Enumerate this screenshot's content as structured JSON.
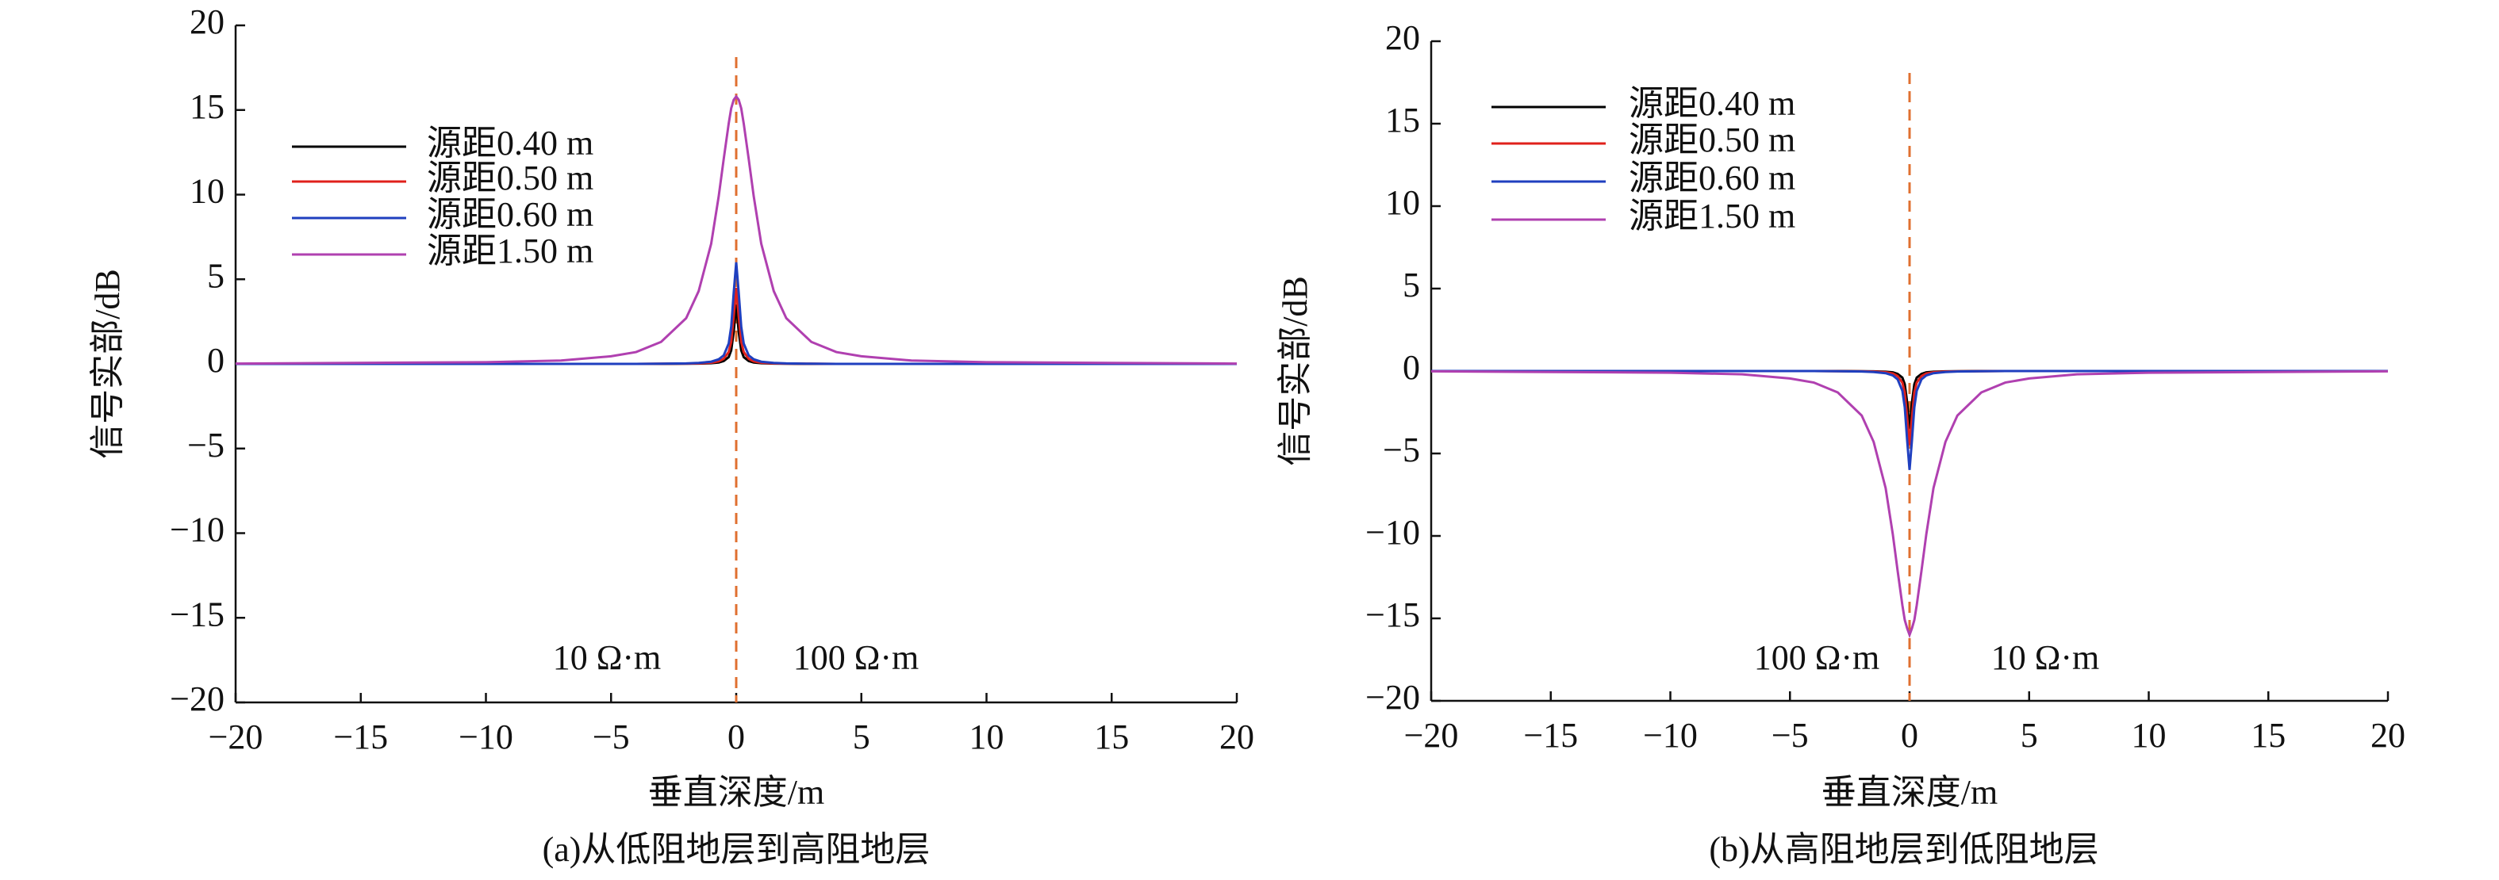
{
  "chart_data": [
    {
      "type": "line",
      "caption": "(a)从低阻地层到高阻地层",
      "xlabel": "垂直深度/m",
      "ylabel": "信号实部/dB",
      "annotations": [
        "10 Ω·m",
        "100 Ω·m"
      ],
      "vline": 0,
      "vline_color": "#e07030",
      "xlim": [
        -20,
        20
      ],
      "ylim": [
        -20,
        20
      ],
      "xticks": [
        {
          "value": -20,
          "label": "−20"
        },
        {
          "value": -15,
          "label": "−15"
        },
        {
          "value": -10,
          "label": "−10"
        },
        {
          "value": -5,
          "label": "−5"
        },
        0,
        5,
        10,
        15,
        20
      ],
      "yticks": [
        {
          "value": -20,
          "label": "−20"
        },
        {
          "value": -15,
          "label": "−15"
        },
        {
          "value": -10,
          "label": "−10"
        },
        {
          "value": -5,
          "label": "−5"
        },
        0,
        5,
        10,
        15,
        20
      ],
      "x": [
        -20,
        -10,
        -7,
        -5,
        -4,
        -3,
        -2,
        -1.5,
        -1,
        -0.7,
        -0.5,
        -0.3,
        -0.2,
        -0.1,
        0,
        0.1,
        0.2,
        0.3,
        0.5,
        0.7,
        1,
        1.5,
        2,
        3,
        4,
        5,
        7,
        10,
        20
      ],
      "series": [
        {
          "name": "源距0.40 m",
          "color": "#000000",
          "values": [
            0,
            0,
            0,
            0,
            0,
            0,
            0.01,
            0.02,
            0.04,
            0.08,
            0.17,
            0.4,
            0.8,
            1.9,
            3.5,
            1.9,
            0.8,
            0.4,
            0.17,
            0.08,
            0.04,
            0.02,
            0.01,
            0,
            0,
            0,
            0,
            0,
            0
          ]
        },
        {
          "name": "源距0.50 m",
          "color": "#e0201b",
          "values": [
            0,
            0,
            0,
            0,
            0,
            0.01,
            0.02,
            0.03,
            0.07,
            0.15,
            0.3,
            0.7,
            1.3,
            2.8,
            4.5,
            2.8,
            1.3,
            0.7,
            0.3,
            0.15,
            0.07,
            0.03,
            0.02,
            0.01,
            0,
            0,
            0,
            0,
            0
          ]
        },
        {
          "name": "源距0.60 m",
          "color": "#1f3fbf",
          "values": [
            0,
            0,
            0,
            0,
            0,
            0.01,
            0.03,
            0.06,
            0.13,
            0.27,
            0.5,
            1.2,
            2.2,
            4.2,
            6,
            4.2,
            2.2,
            1.2,
            0.5,
            0.27,
            0.13,
            0.06,
            0.03,
            0.01,
            0,
            0,
            0,
            0,
            0
          ]
        },
        {
          "name": "源距1.50 m",
          "color": "#b040b0",
          "values": [
            0.02,
            0.1,
            0.2,
            0.45,
            0.7,
            1.3,
            2.7,
            4.3,
            7.1,
            9.9,
            12.1,
            14.2,
            15.1,
            15.6,
            15.8,
            15.6,
            15.1,
            14.2,
            12.1,
            9.9,
            7.1,
            4.3,
            2.7,
            1.3,
            0.7,
            0.45,
            0.2,
            0.1,
            0.02
          ]
        }
      ]
    },
    {
      "type": "line",
      "caption": "(b)从高阻地层到低阻地层",
      "xlabel": "垂直深度/m",
      "ylabel": "信号实部/dB",
      "annotations": [
        "100 Ω·m",
        "10 Ω·m"
      ],
      "vline": 0,
      "vline_color": "#e07030",
      "xlim": [
        -20,
        20
      ],
      "ylim": [
        -20,
        20
      ],
      "xticks": [
        {
          "value": -20,
          "label": "−20"
        },
        {
          "value": -15,
          "label": "−15"
        },
        {
          "value": -10,
          "label": "−10"
        },
        {
          "value": -5,
          "label": "−5"
        },
        0,
        5,
        10,
        15,
        20
      ],
      "yticks": [
        {
          "value": -20,
          "label": "−20"
        },
        {
          "value": -15,
          "label": "−15"
        },
        {
          "value": -10,
          "label": "−10"
        },
        {
          "value": -5,
          "label": "−5"
        },
        0,
        5,
        10,
        15,
        20
      ],
      "x": [
        -20,
        -10,
        -7,
        -5,
        -4,
        -3,
        -2,
        -1.5,
        -1,
        -0.7,
        -0.5,
        -0.3,
        -0.2,
        -0.1,
        0,
        0.1,
        0.2,
        0.3,
        0.5,
        0.7,
        1,
        1.5,
        2,
        3,
        4,
        5,
        7,
        10,
        20
      ],
      "series": [
        {
          "name": "源距0.40 m",
          "color": "#000000",
          "values": [
            0,
            0,
            0,
            0,
            0,
            0,
            -0.01,
            -0.02,
            -0.04,
            -0.08,
            -0.17,
            -0.4,
            -0.8,
            -1.9,
            -3.5,
            -1.9,
            -0.8,
            -0.4,
            -0.17,
            -0.08,
            -0.04,
            -0.02,
            -0.01,
            0,
            0,
            0,
            0,
            0,
            0
          ]
        },
        {
          "name": "源距0.50 m",
          "color": "#e0201b",
          "values": [
            0,
            0,
            0,
            0,
            0,
            -0.01,
            -0.02,
            -0.03,
            -0.07,
            -0.15,
            -0.3,
            -0.7,
            -1.3,
            -2.8,
            -4.5,
            -2.8,
            -1.3,
            -0.7,
            -0.3,
            -0.15,
            -0.07,
            -0.03,
            -0.02,
            -0.01,
            0,
            0,
            0,
            0,
            0
          ]
        },
        {
          "name": "源距0.60 m",
          "color": "#1f3fbf",
          "values": [
            0,
            0,
            0,
            0,
            0,
            -0.01,
            -0.03,
            -0.06,
            -0.13,
            -0.27,
            -0.5,
            -1.2,
            -2.2,
            -4.2,
            -6,
            -4.2,
            -2.2,
            -1.2,
            -0.5,
            -0.27,
            -0.13,
            -0.06,
            -0.03,
            -0.01,
            0,
            0,
            0,
            0,
            0
          ]
        },
        {
          "name": "源距1.50 m",
          "color": "#b040b0",
          "values": [
            -0.02,
            -0.1,
            -0.2,
            -0.45,
            -0.7,
            -1.3,
            -2.7,
            -4.3,
            -7.1,
            -9.9,
            -12.1,
            -14.2,
            -15.1,
            -15.6,
            -16,
            -15.6,
            -15.1,
            -14.2,
            -12.1,
            -9.9,
            -7.1,
            -4.3,
            -2.7,
            -1.3,
            -0.7,
            -0.45,
            -0.2,
            -0.1,
            -0.02
          ]
        }
      ]
    }
  ]
}
